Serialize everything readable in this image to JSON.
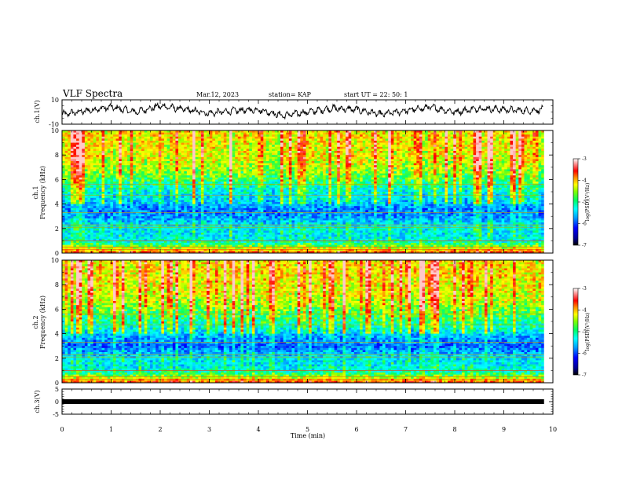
{
  "header": {
    "title": "VLF Spectra",
    "date": "Mar.12, 2023",
    "station": "station= KAP",
    "start": "start  UT  =   22: 50: 1"
  },
  "colors": {
    "spectrogram_scale": [
      "#000080",
      "#0000ff",
      "#0080ff",
      "#00ffff",
      "#00ff80",
      "#80ff00",
      "#ffff00",
      "#ff8000",
      "#ff0000",
      "#ffffff"
    ],
    "trace": "#000000"
  },
  "colorbar": {
    "label": "log(PSD)(V²/Hz)",
    "ticks": [
      "-3",
      "-4",
      "-5",
      "-6",
      "-7"
    ],
    "range": [
      -7,
      -3
    ]
  },
  "chart_data": [
    {
      "type": "line",
      "panel": "ch1-waveform",
      "ylabel": "ch.1(V)",
      "ylim": [
        -10,
        10
      ],
      "yticks": [
        "10",
        "-10"
      ],
      "xlim": [
        0,
        10
      ],
      "x_unit": "min",
      "x": [
        0,
        0.5,
        1,
        1.5,
        2,
        2.5,
        3,
        3.5,
        4,
        4.5,
        5,
        5.5,
        6,
        6.5,
        7,
        7.5,
        8,
        8.5,
        9,
        9.5,
        9.8
      ],
      "values": [
        -2,
        1,
        4,
        0,
        5,
        2,
        -1,
        1,
        2,
        -3,
        0,
        3,
        2,
        -2,
        1,
        4,
        0,
        3,
        2,
        1,
        2
      ],
      "note_fluctuation": "noisy waveform oscillating around 0 V"
    },
    {
      "type": "heatmap",
      "panel": "ch1-spectrogram",
      "ylabel": "ch.1\nFrequency (kHz)",
      "ylabel_line1": "ch.1",
      "ylabel_line2": "Frequency (kHz)",
      "ylim": [
        0,
        10
      ],
      "yticks": [
        "0",
        "2",
        "4",
        "6",
        "8",
        "10"
      ],
      "xlim": [
        0,
        9.82
      ],
      "log_psd_range": [
        -7,
        -3
      ],
      "frequency_profile_khz": [
        0,
        0.5,
        1,
        1.5,
        2,
        2.5,
        3,
        3.5,
        4,
        4.5,
        5,
        5.5,
        6,
        6.5,
        7,
        7.5,
        8,
        8.5,
        9,
        9.5,
        10
      ],
      "mean_log_psd": [
        -3.5,
        -4.6,
        -5.3,
        -5.5,
        -5.4,
        -5.6,
        -5.9,
        -6.0,
        -5.8,
        -5.6,
        -5.5,
        -5.3,
        -5.0,
        -4.8,
        -4.6,
        -4.5,
        -4.4,
        -4.4,
        -4.4,
        -4.3,
        -4.3
      ]
    },
    {
      "type": "heatmap",
      "panel": "ch2-spectrogram",
      "ylabel": "ch.2\nFrequency (kHz)",
      "ylabel_line1": "ch.2",
      "ylabel_line2": "Frequency (kHz)",
      "ylim": [
        0,
        10
      ],
      "yticks": [
        "0",
        "2",
        "4",
        "6",
        "8",
        "10"
      ],
      "xlim": [
        0,
        9.82
      ],
      "log_psd_range": [
        -7,
        -3
      ],
      "frequency_profile_khz": [
        0,
        0.5,
        1,
        1.5,
        2,
        2.5,
        3,
        3.5,
        4,
        4.5,
        5,
        5.5,
        6,
        6.5,
        7,
        7.5,
        8,
        8.5,
        9,
        9.5,
        10
      ],
      "mean_log_psd": [
        -3.5,
        -4.6,
        -5.3,
        -5.5,
        -5.5,
        -5.8,
        -6.1,
        -5.9,
        -5.7,
        -5.4,
        -5.2,
        -5.0,
        -4.8,
        -4.6,
        -4.5,
        -4.4,
        -4.4,
        -4.3,
        -4.3,
        -4.3,
        -4.3
      ]
    },
    {
      "type": "line",
      "panel": "ch3-waveform",
      "ylabel": "ch.3(V)",
      "ylim": [
        -5,
        5
      ],
      "yticks": [
        "5",
        "0",
        "-5"
      ],
      "xlim": [
        0,
        10
      ],
      "x": [
        0,
        9.82
      ],
      "values": [
        0,
        0
      ]
    }
  ],
  "xaxis": {
    "label": "Time (min)",
    "ticks": [
      "0",
      "1",
      "2",
      "3",
      "4",
      "5",
      "6",
      "7",
      "8",
      "9",
      "10"
    ]
  }
}
